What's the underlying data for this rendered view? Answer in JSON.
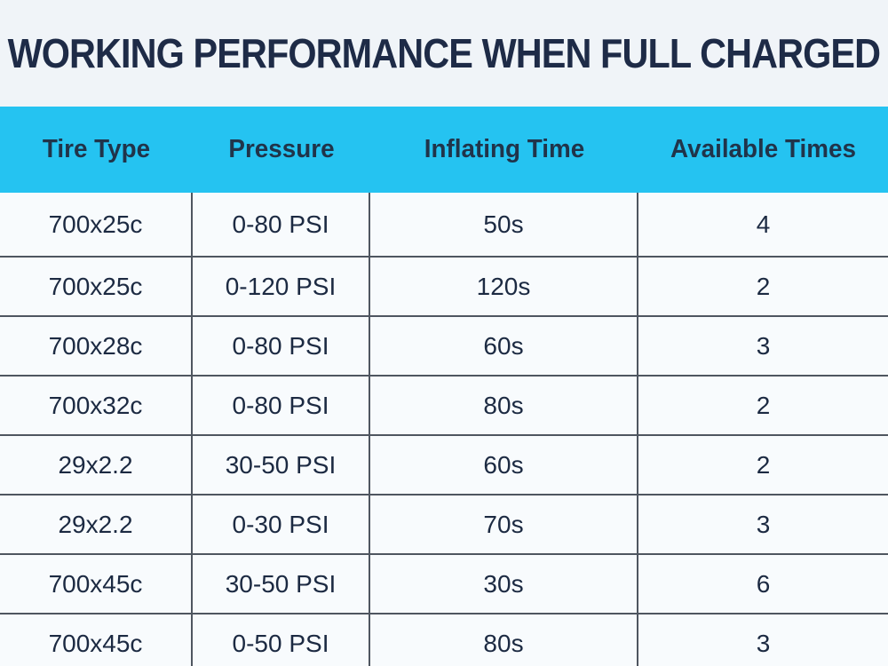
{
  "page": {
    "title": "WORKING PERFORMANCE WHEN FULL CHARGED"
  },
  "colors": {
    "page_background": "#f0f4f8",
    "header_background": "#25c3f1",
    "title_text": "#1e2b47",
    "header_text": "#20344a",
    "cell_text": "#1c2a42",
    "grid_line": "#4f5660",
    "row_background": "#f8fbfd"
  },
  "chart_data": {
    "type": "table",
    "title": "WORKING PERFORMANCE WHEN FULL CHARGED",
    "columns": [
      "Tire Type",
      "Pressure",
      "Inflating Time",
      "Available Times"
    ],
    "rows": [
      [
        "700x25c",
        "0-80 PSI",
        "50s",
        "4"
      ],
      [
        "700x25c",
        "0-120 PSI",
        "120s",
        "2"
      ],
      [
        "700x28c",
        "0-80 PSI",
        "60s",
        "3"
      ],
      [
        "700x32c",
        "0-80 PSI",
        "80s",
        "2"
      ],
      [
        "29x2.2",
        "30-50 PSI",
        "60s",
        "2"
      ],
      [
        "29x2.2",
        "0-30 PSI",
        "70s",
        "3"
      ],
      [
        "700x45c",
        "30-50 PSI",
        "30s",
        "6"
      ],
      [
        "700x45c",
        "0-50 PSI",
        "80s",
        "3"
      ]
    ]
  }
}
